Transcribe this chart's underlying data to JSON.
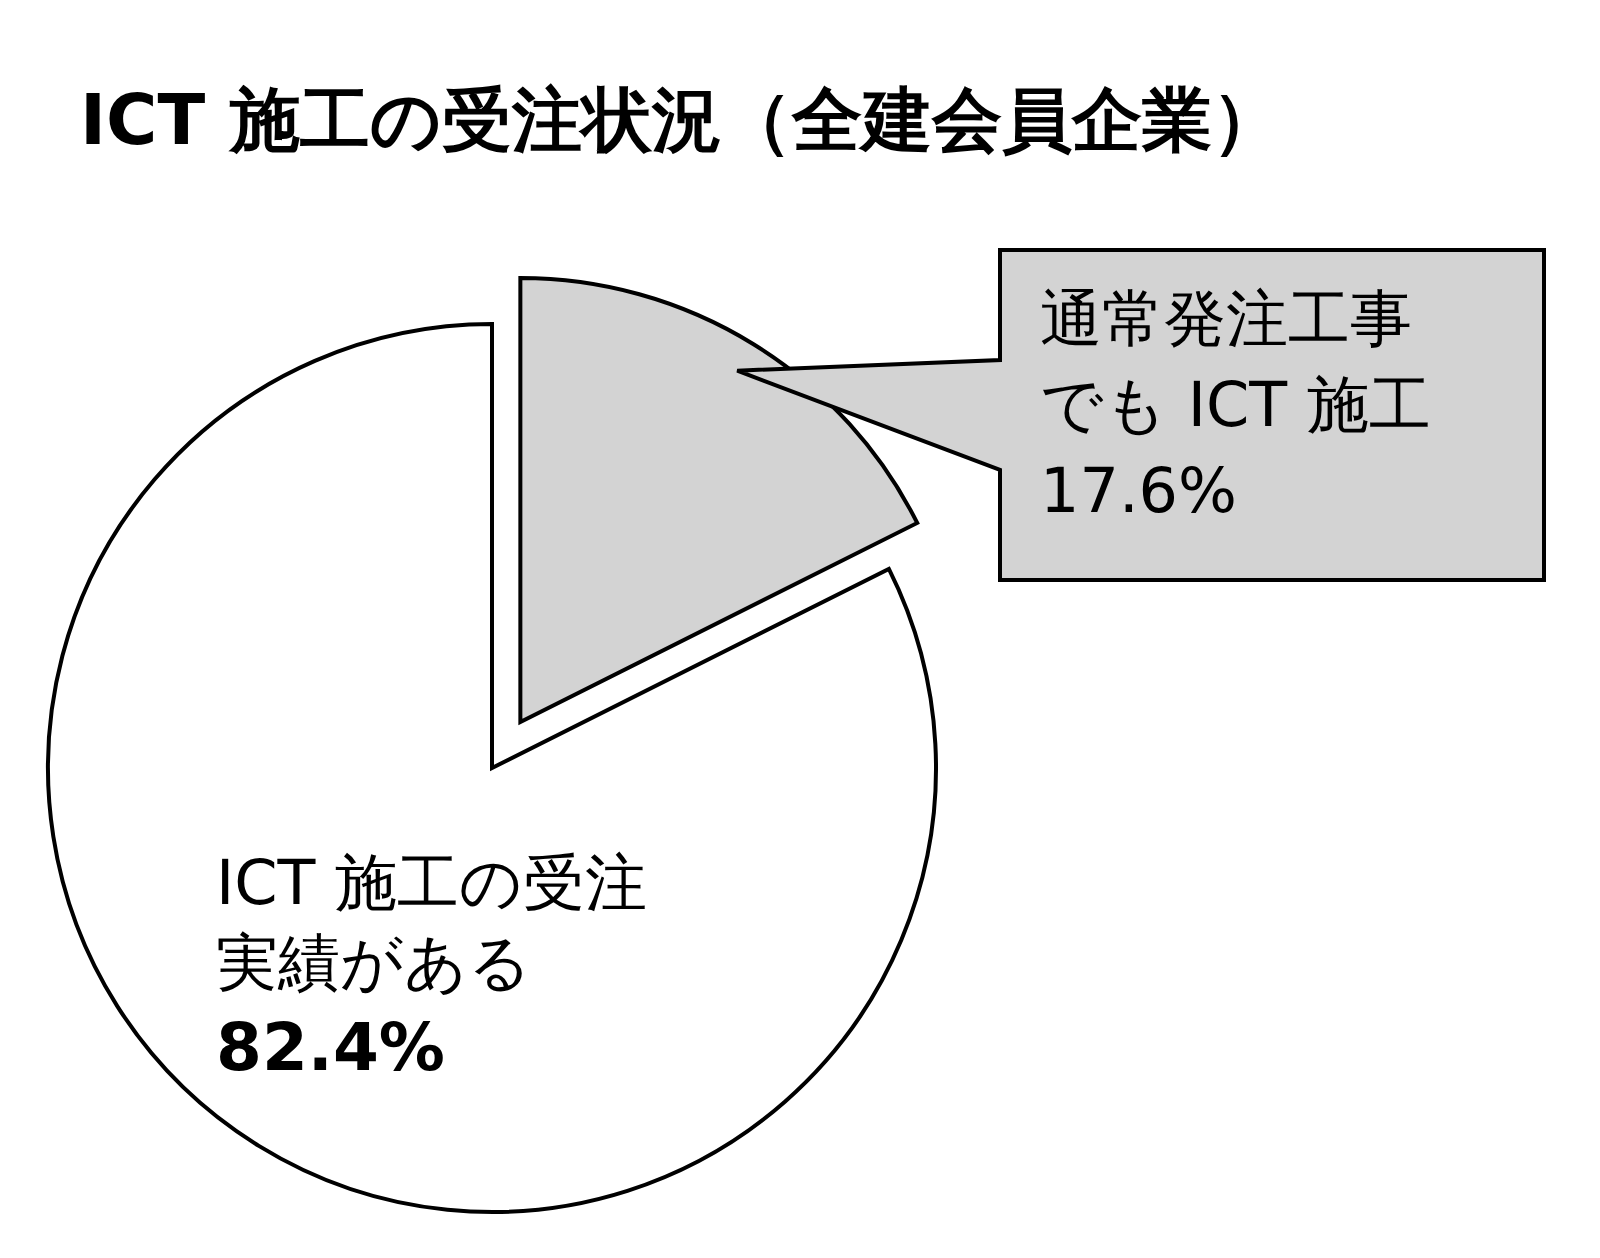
{
  "chart_data": {
    "type": "pie",
    "title": "ICT 施工の受注状況（全建会員企業）",
    "categories": [
      "通常発注工事でも ICT 施工",
      "ICT 施工の受注実績がある"
    ],
    "values": [
      17.6,
      82.4
    ],
    "colors": [
      "#d3d3d3",
      "#ffffff"
    ],
    "value_labels": [
      "17.6%",
      "82.4%"
    ]
  }
}
